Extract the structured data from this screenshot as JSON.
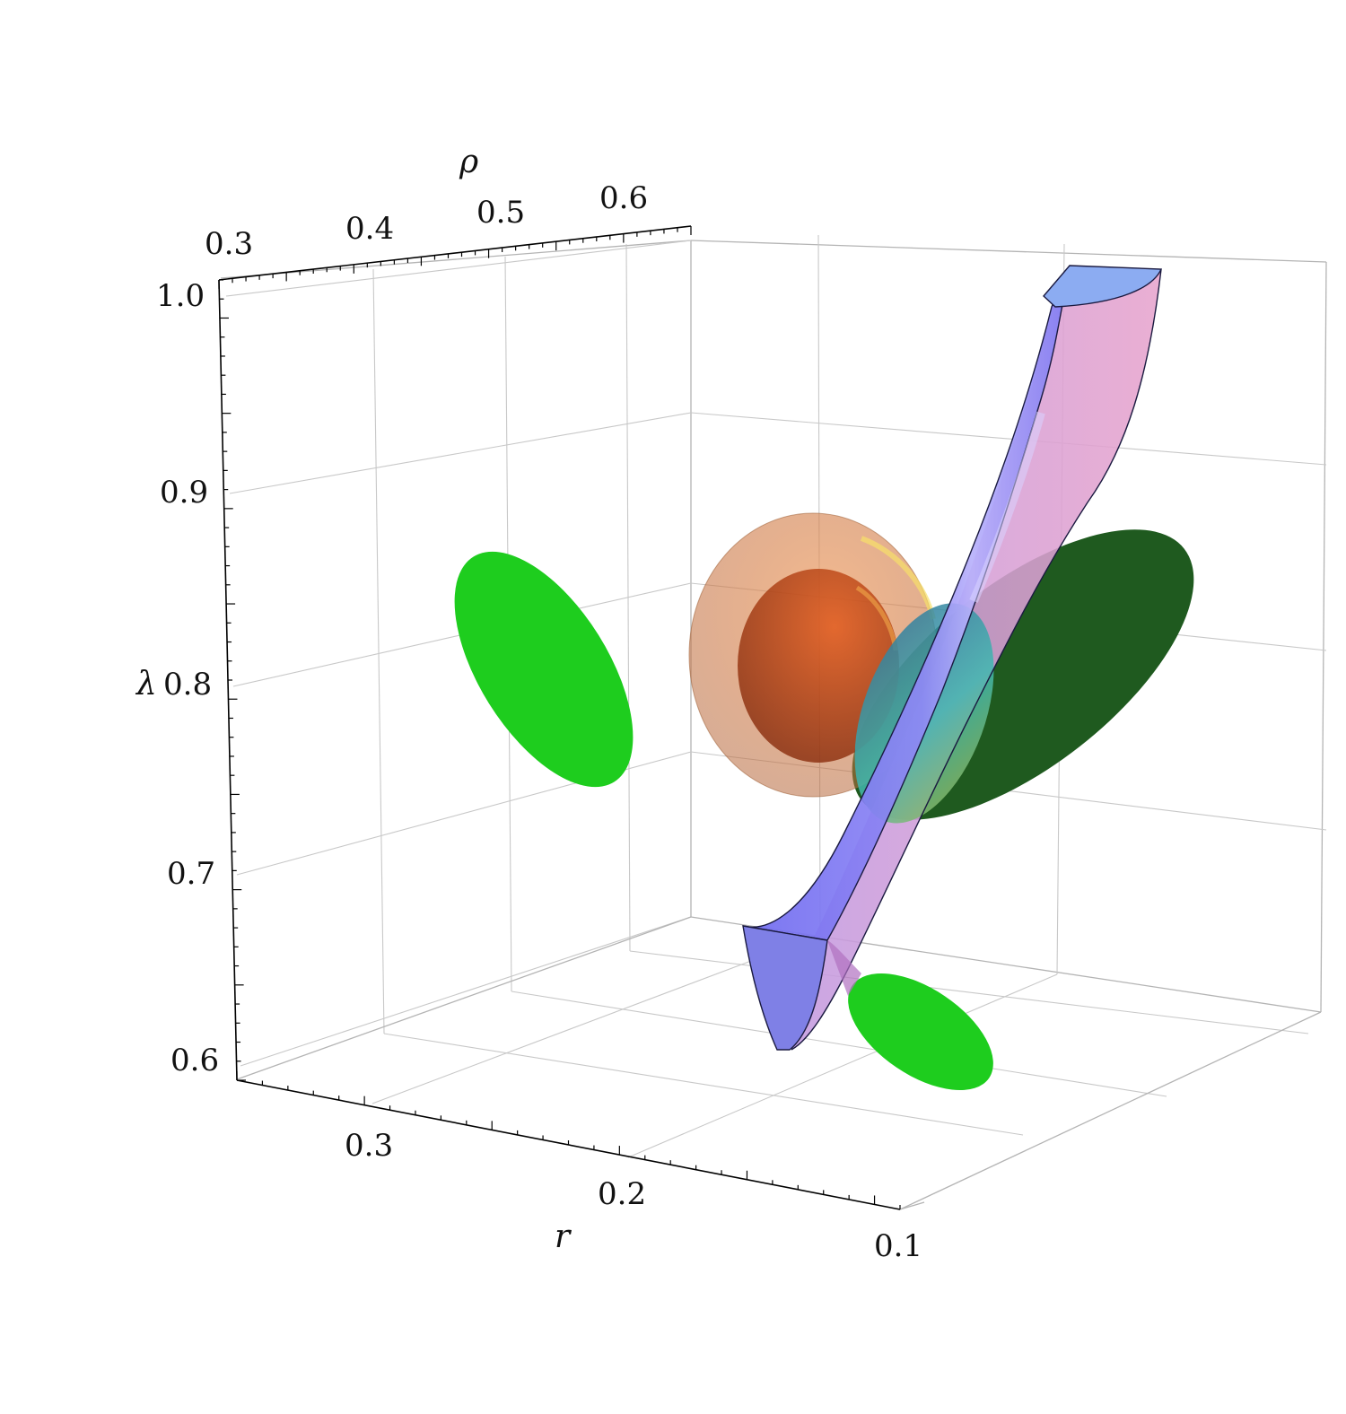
{
  "chart_data": {
    "type": "3d-contour",
    "title": "",
    "axes": {
      "rho": {
        "label": "ρ",
        "ticks": [
          "0.3",
          "0.4",
          "0.5",
          "0.6"
        ]
      },
      "lambda": {
        "label": "λ",
        "ticks": [
          "0.6",
          "0.7",
          "0.8",
          "0.9",
          "1.0"
        ]
      },
      "r": {
        "label": "r",
        "ticks": [
          "0.3",
          "0.2",
          "0.1"
        ]
      }
    },
    "grid": true,
    "colors": {
      "confidence_region": "#ff7d35",
      "confidence_region_inner": "#b33c0f",
      "constraint_tube_front": "#7570f2",
      "constraint_tube_back": "#e59bc8",
      "tube_cap": "#8cacf2",
      "projection_left": "#1ecd1e",
      "projection_right": "#1f5a1f",
      "projection_bottom": "#1ecd1e",
      "intersection": "#2fa0a0"
    }
  }
}
